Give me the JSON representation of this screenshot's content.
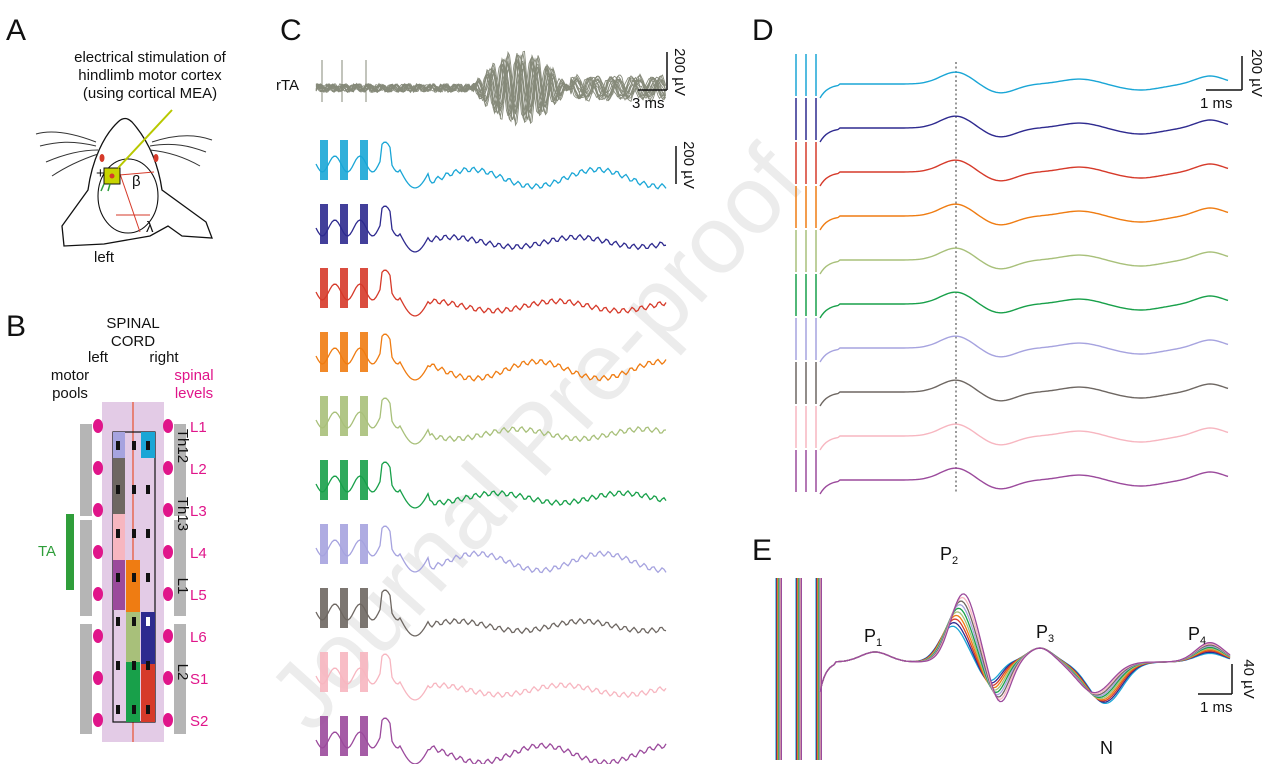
{
  "panels": {
    "A": "A",
    "B": "B",
    "C": "C",
    "D": "D",
    "E": "E"
  },
  "panelA": {
    "caption_lines": [
      "electrical stimulation of",
      "hindlimb motor cortex",
      "(using cortical MEA)"
    ],
    "side": "left",
    "plus": "+",
    "beta": "β",
    "lambda": "λ"
  },
  "panelB": {
    "title_lines": [
      "SPINAL",
      "CORD"
    ],
    "left_lines": [
      "left",
      "motor",
      "pools"
    ],
    "right": "right",
    "levels_title": [
      "spinal",
      "levels"
    ],
    "levels": [
      "L1",
      "L2",
      "L3",
      "L4",
      "L5",
      "L6",
      "S1",
      "S2"
    ],
    "vertebrae": [
      "Th12",
      "Th13",
      "L1",
      "L2"
    ],
    "muscle": "TA",
    "colors": {
      "cord": "#e3cbe6",
      "midline": "#e85a3c",
      "dot": "#e0158a",
      "bone": "#b5b5b5",
      "muscle": "#2f9e3a"
    }
  },
  "panelC": {
    "rta_label": "rTA",
    "scale_top_v": "200 µV",
    "scale_top_t": "3 ms",
    "scale_bottom_v": "200 µV"
  },
  "panelD": {
    "scale_v": "200 µV",
    "scale_t": "1 ms"
  },
  "panelE": {
    "peaks": [
      "P",
      "P",
      "P",
      "P",
      "N"
    ],
    "subs": [
      "1",
      "2",
      "3",
      "4"
    ],
    "scale_v": "40 µV",
    "scale_t": "1 ms"
  },
  "watermark": "Journal Pre-proof",
  "trace_colors": [
    "#1aa6d6",
    "#2e2a8f",
    "#d63a2a",
    "#ef7c12",
    "#a8c07a",
    "#18a04a",
    "#a6a3df",
    "#6e6762",
    "#f7b6c0",
    "#9b4a9c"
  ]
}
